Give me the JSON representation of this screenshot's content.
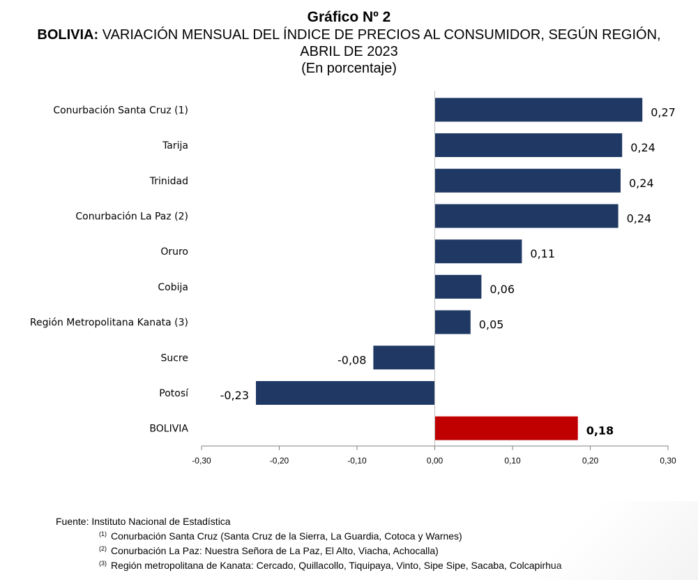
{
  "header": {
    "title": "Gráfico Nº 2",
    "subtitle_bold": "BOLIVIA:",
    "subtitle_rest": "VARIACIÓN MENSUAL DEL ÍNDICE DE PRECIOS AL CONSUMIDOR, SEGÚN REGIÓN, ABRIL DE 2023",
    "unit": "(En porcentaje)"
  },
  "chart_data": {
    "type": "bar",
    "orientation": "horizontal",
    "categories": [
      "Conurbación Santa Cruz (1)",
      "Tarija",
      "Trinidad",
      "Conurbación La Paz (2)",
      "Oruro",
      "Cobija",
      "Región Metropolitana Kanata (3)",
      "Sucre",
      "Potosí",
      "BOLIVIA"
    ],
    "values": [
      0.267,
      0.241,
      0.239,
      0.236,
      0.112,
      0.06,
      0.046,
      -0.079,
      -0.23,
      0.184
    ],
    "data_labels": [
      "0,27",
      "0,24",
      "0,24",
      "0,24",
      "0,11",
      "0,06",
      "0,05",
      "-0,08",
      "-0,23",
      "0,18"
    ],
    "bar_colors": [
      "#1f3864",
      "#1f3864",
      "#1f3864",
      "#1f3864",
      "#1f3864",
      "#1f3864",
      "#1f3864",
      "#1f3864",
      "#1f3864",
      "#c00000"
    ],
    "highlight_index": 9,
    "xlim": [
      -0.3,
      0.3
    ],
    "x_ticks": [
      -0.3,
      -0.2,
      -0.1,
      0.0,
      0.1,
      0.2,
      0.3
    ],
    "x_tick_labels": [
      "-0,30",
      "-0,20",
      "-0,10",
      "0,00",
      "0,10",
      "0,20",
      "0,30"
    ],
    "grid": false,
    "legend": "none"
  },
  "footer": {
    "source": "Fuente: Instituto Nacional de Estadística",
    "notes": [
      {
        "mark": "(1)",
        "text": "Conurbación Santa Cruz (Santa Cruz de la Sierra, La Guardia, Cotoca y Warnes)"
      },
      {
        "mark": "(2)",
        "text": "Conurbación La Paz: Nuestra Señora de La Paz, El Alto, Viacha, Achocalla)"
      },
      {
        "mark": "(3)",
        "text": "Región metropolitana de Kanata: Cercado, Quillacollo, Tiquipaya, Vinto, Sipe Sipe, Sacaba, Colcapirhua"
      }
    ]
  }
}
